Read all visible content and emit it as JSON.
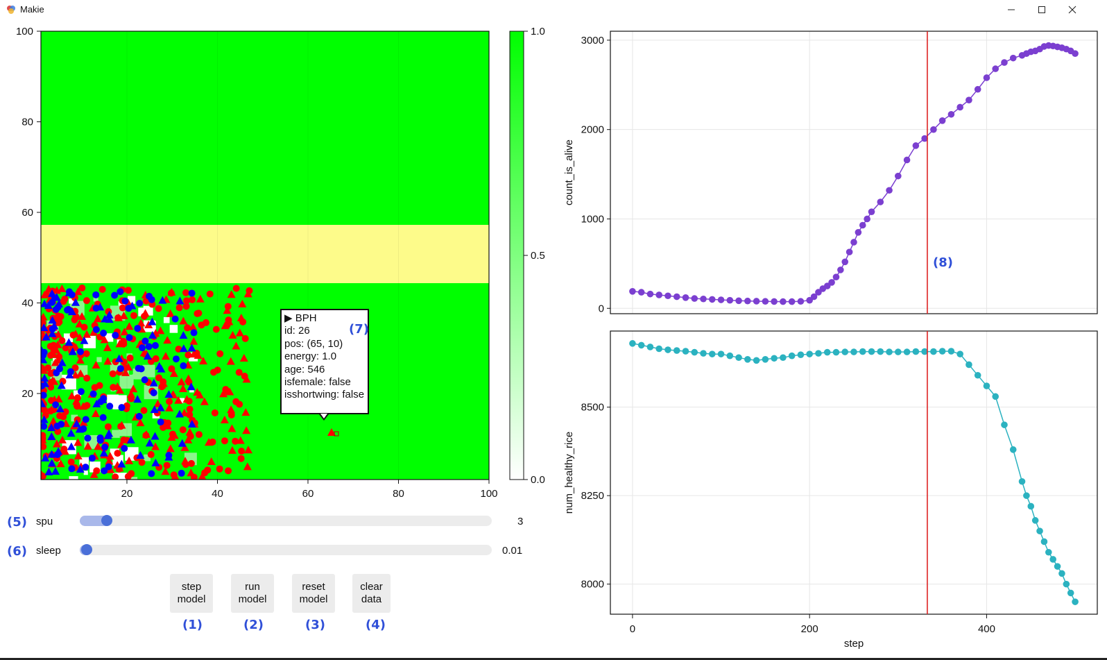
{
  "window": {
    "title": "Makie",
    "minimize_icon": "minimize-icon",
    "maximize_icon": "maximize-icon",
    "close_icon": "close-icon"
  },
  "heatmap_panel": {
    "x_ticks": [
      "20",
      "40",
      "60",
      "80",
      "100"
    ],
    "y_ticks": [
      "20",
      "40",
      "60",
      "80",
      "100"
    ],
    "colorbar_ticks": [
      "0.0",
      "0.5",
      "1.0"
    ],
    "colors": {
      "field": "#00ff00",
      "band": "#fdfb8a",
      "agent_red": "#ff0000",
      "agent_blue": "#0000ff"
    }
  },
  "tooltip": {
    "lines": [
      "▶ BPH",
      "id: 26",
      "pos: (65, 10)",
      "energy: 1.0",
      "age: 546",
      "isfemale: false",
      "isshortwing: false"
    ]
  },
  "markers": [
    "(1)",
    "(2)",
    "(3)",
    "(4)",
    "(5)",
    "(6)",
    "(7)",
    "(8)"
  ],
  "sliders": [
    {
      "name": "spu",
      "value": "3",
      "level": 0.05
    },
    {
      "name": "sleep",
      "value": "0.01",
      "level": 0.0
    }
  ],
  "buttons": [
    {
      "line1": "step",
      "line2": "model"
    },
    {
      "line1": "run",
      "line2": "model"
    },
    {
      "line1": "reset",
      "line2": "model"
    },
    {
      "line1": "clear",
      "line2": "data"
    }
  ],
  "chart_data": [
    {
      "type": "scatter",
      "title": "",
      "xlabel": "step",
      "ylabel": "count_is_alive",
      "xlim": [
        -25,
        525
      ],
      "ylim": [
        -60,
        3100
      ],
      "x_ticks": [
        "0",
        "200",
        "400"
      ],
      "y_ticks": [
        "0",
        "1000",
        "2000",
        "3000"
      ],
      "color": "#7b3fd0",
      "vline_step": 333,
      "series": [
        {
          "x": [
            0,
            10,
            20,
            30,
            40,
            50,
            60,
            70,
            80,
            90,
            100,
            110,
            120,
            130,
            140,
            150,
            160,
            170,
            180,
            190,
            200,
            205,
            210,
            215,
            220,
            225,
            230,
            235,
            240,
            245,
            250,
            255,
            260,
            265,
            270,
            280,
            290,
            300,
            310,
            320,
            330,
            340,
            350,
            360,
            370,
            380,
            390,
            400,
            410,
            420,
            430,
            440,
            445,
            450,
            455,
            460,
            465,
            470,
            475,
            480,
            485,
            490,
            495,
            500
          ],
          "y": [
            190,
            180,
            160,
            150,
            140,
            130,
            120,
            110,
            105,
            100,
            95,
            90,
            85,
            82,
            80,
            78,
            76,
            75,
            75,
            78,
            90,
            130,
            180,
            220,
            250,
            290,
            350,
            430,
            520,
            630,
            740,
            850,
            930,
            1000,
            1080,
            1190,
            1320,
            1480,
            1660,
            1820,
            1900,
            2000,
            2100,
            2170,
            2250,
            2330,
            2450,
            2580,
            2680,
            2750,
            2800,
            2830,
            2850,
            2870,
            2880,
            2900,
            2930,
            2940,
            2935,
            2925,
            2915,
            2900,
            2880,
            2850
          ]
        }
      ]
    },
    {
      "type": "scatter",
      "title": "",
      "xlabel": "step",
      "ylabel": "num_healthy_rice",
      "xlim": [
        -25,
        525
      ],
      "ylim": [
        7915,
        8715
      ],
      "x_ticks": [
        "0",
        "200",
        "400"
      ],
      "y_ticks": [
        "8000",
        "8250",
        "8500"
      ],
      "color": "#2bb2c0",
      "vline_step": 333,
      "series": [
        {
          "x": [
            0,
            10,
            20,
            30,
            40,
            50,
            60,
            70,
            80,
            90,
            100,
            110,
            120,
            130,
            140,
            150,
            160,
            170,
            180,
            190,
            200,
            210,
            220,
            230,
            240,
            250,
            260,
            270,
            280,
            290,
            300,
            310,
            320,
            330,
            340,
            350,
            360,
            370,
            380,
            390,
            400,
            410,
            420,
            430,
            440,
            445,
            450,
            455,
            460,
            465,
            470,
            475,
            480,
            485,
            490,
            495,
            500
          ],
          "y": [
            8680,
            8675,
            8670,
            8665,
            8662,
            8660,
            8658,
            8655,
            8652,
            8650,
            8650,
            8645,
            8640,
            8635,
            8632,
            8635,
            8638,
            8640,
            8645,
            8648,
            8650,
            8652,
            8655,
            8655,
            8656,
            8656,
            8657,
            8657,
            8657,
            8656,
            8656,
            8656,
            8657,
            8657,
            8657,
            8658,
            8658,
            8650,
            8620,
            8590,
            8560,
            8530,
            8450,
            8380,
            8290,
            8250,
            8220,
            8180,
            8150,
            8120,
            8090,
            8070,
            8050,
            8030,
            8000,
            7975,
            7950
          ]
        }
      ]
    }
  ]
}
